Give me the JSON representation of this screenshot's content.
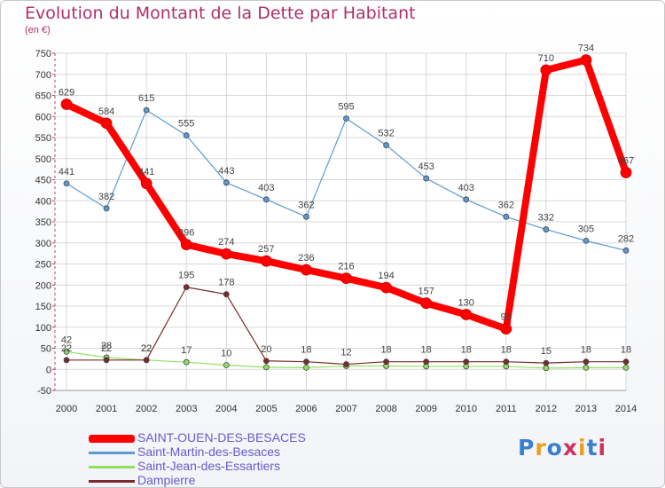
{
  "title": "Evolution du Montant de la Dette par Habitant",
  "subtitle": "(en €)",
  "logo": "Proxiti",
  "chart_data": {
    "type": "line",
    "x": [
      "2000",
      "2001",
      "2002",
      "2003",
      "2004",
      "2005",
      "2006",
      "2007",
      "2008",
      "2009",
      "2010",
      "2011",
      "2012",
      "2013",
      "2014"
    ],
    "ylim": [
      -50,
      750
    ],
    "yticks": [
      "-50",
      "0",
      "50",
      "100",
      "150",
      "200",
      "250",
      "300",
      "350",
      "400",
      "450",
      "500",
      "550",
      "600",
      "650",
      "700",
      "750"
    ],
    "grid": true,
    "legend_position": "bottom-left",
    "series": [
      {
        "name": "SAINT-OUEN-DES-BESACES",
        "color": "#ff0000",
        "values": [
          629,
          584,
          441,
          296,
          274,
          257,
          236,
          216,
          194,
          157,
          130,
          96,
          710,
          734,
          467
        ],
        "labels": [
          "629",
          "584",
          "441",
          "296",
          "274",
          "257",
          "236",
          "216",
          "194",
          "157",
          "130",
          "96",
          "710",
          "734",
          "467"
        ]
      },
      {
        "name": "Saint-Martin-des-Besaces",
        "color": "#5b9bd5",
        "values": [
          441,
          382,
          615,
          555,
          443,
          403,
          362,
          595,
          532,
          453,
          403,
          362,
          332,
          305,
          282
        ],
        "labels": [
          "441",
          "382",
          "615",
          "555",
          "443",
          "403",
          "362",
          "595",
          "532",
          "453",
          "403",
          "362",
          "332",
          "305",
          "282"
        ]
      },
      {
        "name": "Saint-Jean-des-Essartiers",
        "color": "#90e060",
        "values": [
          42,
          28,
          22,
          17,
          10,
          5,
          4,
          8,
          8,
          7,
          7,
          7,
          3,
          4,
          4
        ],
        "labels": [
          "42",
          "28",
          "22",
          "17",
          "10",
          "",
          "",
          "",
          "",
          "",
          "",
          "",
          "",
          "",
          ""
        ]
      },
      {
        "name": "Dampierre",
        "color": "#7a2a2a",
        "values": [
          22,
          22,
          22,
          195,
          178,
          20,
          18,
          12,
          18,
          18,
          18,
          18,
          15,
          18,
          18
        ],
        "labels": [
          "22",
          "22",
          "22",
          "195",
          "178",
          "20",
          "18",
          "12",
          "18",
          "18",
          "18",
          "18",
          "15",
          "18",
          "18"
        ]
      }
    ]
  }
}
